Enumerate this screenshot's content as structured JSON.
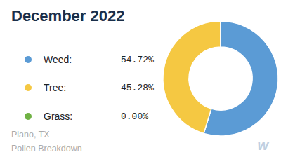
{
  "chart_data": {
    "type": "pie",
    "title": "December 2022",
    "subtitle": [
      "Plano, TX",
      "Pollen Breakdown"
    ],
    "annotations": [
      "w"
    ],
    "categories": [
      "Weed:",
      "Tree:",
      "Grass:"
    ],
    "values": [
      54.72,
      45.28,
      0.001
    ],
    "value_labels": [
      "54.72%",
      "45.28%",
      "0.00%"
    ],
    "colors": [
      "#5b9bd5",
      "#f5c842",
      "#70b244"
    ],
    "legend": "left"
  }
}
